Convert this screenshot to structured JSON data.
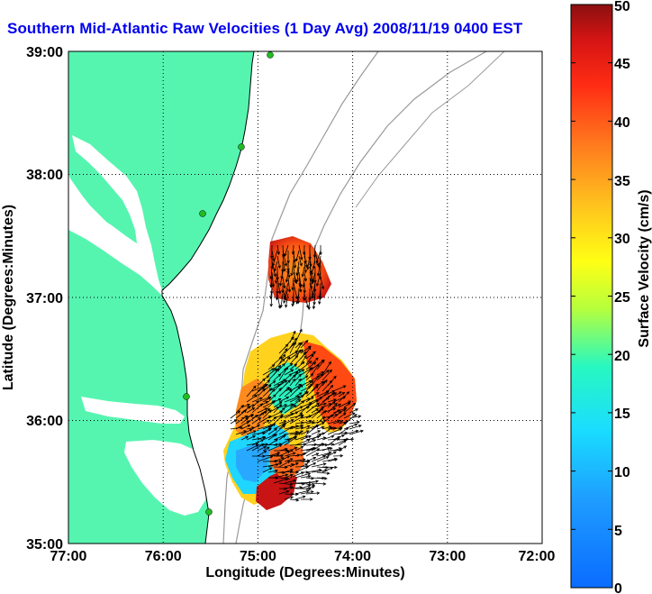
{
  "title": "Southern Mid-Atlantic Raw Velocities (1 Day Avg) 2008/11/19 0400 EST",
  "xlabel": "Longitude (Degrees:Minutes)",
  "ylabel": "Latitude (Degrees:Minutes)",
  "x_ticks": [
    "77:00",
    "76:00",
    "75:00",
    "74:00",
    "73:00",
    "72:00"
  ],
  "y_ticks": [
    "39:00",
    "38:00",
    "37:00",
    "36:00",
    "35:00"
  ],
  "colorbar": {
    "label": "Surface Velocity (cm/s)",
    "ticks": [
      "0",
      "5",
      "10",
      "15",
      "20",
      "25",
      "30",
      "35",
      "40",
      "45",
      "50"
    ],
    "min": 0,
    "max": 50
  },
  "colors": {
    "land": "#55f5b0",
    "title": "#0000ee",
    "bathymetry": "#9a9a9a",
    "station": "#22bb22"
  }
}
